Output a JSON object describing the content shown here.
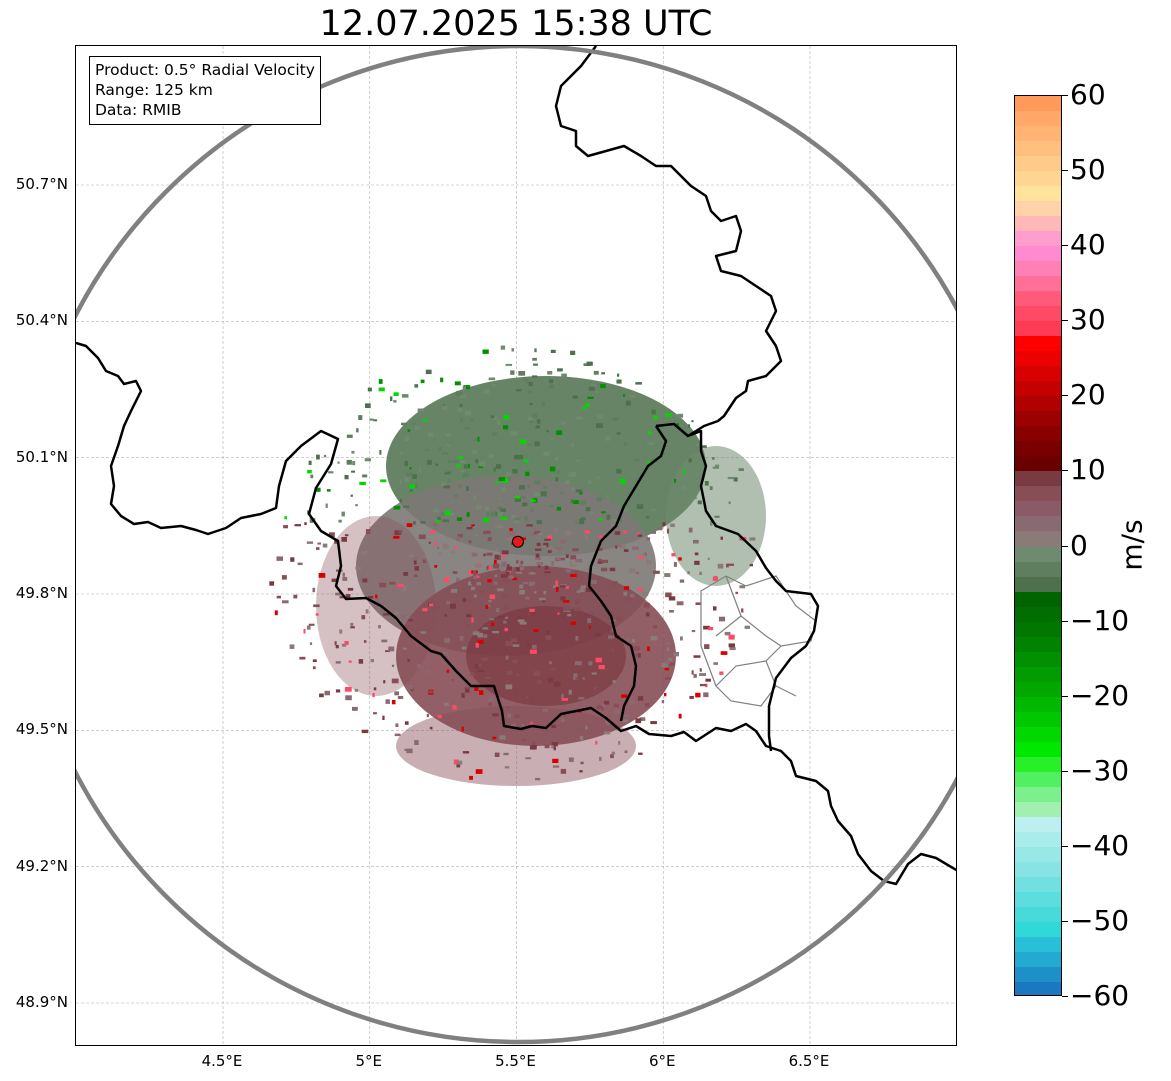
{
  "title": "12.07.2025 15:38 UTC",
  "info_box": {
    "lines": [
      "Product: 0.5° Radial Velocity",
      "Range: 125 km",
      "Data: RMIB"
    ]
  },
  "map": {
    "lat_ticks": [
      {
        "value": 50.7,
        "label": "50.7°N"
      },
      {
        "value": 50.4,
        "label": "50.4°N"
      },
      {
        "value": 50.1,
        "label": "50.1°N"
      },
      {
        "value": 49.8,
        "label": "49.8°N"
      },
      {
        "value": 49.5,
        "label": "49.5°N"
      },
      {
        "value": 49.2,
        "label": "49.2°N"
      },
      {
        "value": 48.9,
        "label": "48.9°N"
      }
    ],
    "lon_ticks": [
      {
        "value": 4.5,
        "label": "4.5°E"
      },
      {
        "value": 5.0,
        "label": "5°E"
      },
      {
        "value": 5.5,
        "label": "5.5°E"
      },
      {
        "value": 6.0,
        "label": "6°E"
      },
      {
        "value": 6.5,
        "label": "6.5°E"
      }
    ],
    "extent": {
      "lon_min": 4.0,
      "lon_max": 7.0,
      "lat_min": 48.8,
      "lat_max": 51.0
    },
    "radar_site": {
      "lon": 5.505,
      "lat": 49.915
    },
    "range_ring_km": 125,
    "grid": true,
    "colors": {
      "range_ring": "#808080",
      "borders": "#000000",
      "admin": "#808080",
      "radar_marker": "#e31a1c"
    }
  },
  "colorbar": {
    "unit": "m/s",
    "ticks": [
      {
        "value": 60,
        "label": "60"
      },
      {
        "value": 50,
        "label": "50"
      },
      {
        "value": 40,
        "label": "40"
      },
      {
        "value": 30,
        "label": "30"
      },
      {
        "value": 20,
        "label": "20"
      },
      {
        "value": 10,
        "label": "10"
      },
      {
        "value": 0,
        "label": "0"
      },
      {
        "value": -10,
        "label": "−10"
      },
      {
        "value": -20,
        "label": "−20"
      },
      {
        "value": -30,
        "label": "−30"
      },
      {
        "value": -40,
        "label": "−40"
      },
      {
        "value": -50,
        "label": "−50"
      },
      {
        "value": -60,
        "label": "−60"
      }
    ],
    "range": [
      -60,
      60
    ],
    "bands": [
      {
        "from": 58,
        "to": 60,
        "color": "#ff9a5a"
      },
      {
        "from": 56,
        "to": 58,
        "color": "#ffa868"
      },
      {
        "from": 54,
        "to": 56,
        "color": "#ffb474"
      },
      {
        "from": 52,
        "to": 54,
        "color": "#ffc07f"
      },
      {
        "from": 50,
        "to": 52,
        "color": "#ffcb8a"
      },
      {
        "from": 48,
        "to": 50,
        "color": "#ffd593"
      },
      {
        "from": 46,
        "to": 48,
        "color": "#ffe29c"
      },
      {
        "from": 44,
        "to": 46,
        "color": "#ffd2a8"
      },
      {
        "from": 42,
        "to": 44,
        "color": "#ffb8b8"
      },
      {
        "from": 40,
        "to": 42,
        "color": "#ff9dcf"
      },
      {
        "from": 38,
        "to": 40,
        "color": "#ff8ad0"
      },
      {
        "from": 36,
        "to": 38,
        "color": "#ff80b4"
      },
      {
        "from": 34,
        "to": 36,
        "color": "#ff6f98"
      },
      {
        "from": 32,
        "to": 34,
        "color": "#ff5a7a"
      },
      {
        "from": 30,
        "to": 32,
        "color": "#ff4a66"
      },
      {
        "from": 28,
        "to": 30,
        "color": "#ff3a55"
      },
      {
        "from": 26,
        "to": 28,
        "color": "#ff0000"
      },
      {
        "from": 24,
        "to": 26,
        "color": "#ec0000"
      },
      {
        "from": 22,
        "to": 24,
        "color": "#d80000"
      },
      {
        "from": 20,
        "to": 22,
        "color": "#c40000"
      },
      {
        "from": 18,
        "to": 20,
        "color": "#b00000"
      },
      {
        "from": 16,
        "to": 18,
        "color": "#9c0000"
      },
      {
        "from": 14,
        "to": 16,
        "color": "#880000"
      },
      {
        "from": 12,
        "to": 14,
        "color": "#780000"
      },
      {
        "from": 10,
        "to": 12,
        "color": "#6a0000"
      },
      {
        "from": 8,
        "to": 10,
        "color": "#7a3a42"
      },
      {
        "from": 6,
        "to": 8,
        "color": "#874e56"
      },
      {
        "from": 4,
        "to": 6,
        "color": "#8a5a66"
      },
      {
        "from": 2,
        "to": 4,
        "color": "#8a6a72"
      },
      {
        "from": 0,
        "to": 2,
        "color": "#8a7a78"
      },
      {
        "from": -2,
        "to": 0,
        "color": "#708a70"
      },
      {
        "from": -4,
        "to": -2,
        "color": "#5f7e5e"
      },
      {
        "from": -6,
        "to": -4,
        "color": "#4e704c"
      },
      {
        "from": -8,
        "to": -6,
        "color": "#006400"
      },
      {
        "from": -10,
        "to": -8,
        "color": "#006e00"
      },
      {
        "from": -12,
        "to": -10,
        "color": "#007800"
      },
      {
        "from": -14,
        "to": -12,
        "color": "#008400"
      },
      {
        "from": -16,
        "to": -14,
        "color": "#009000"
      },
      {
        "from": -18,
        "to": -16,
        "color": "#009c00"
      },
      {
        "from": -20,
        "to": -18,
        "color": "#00a800"
      },
      {
        "from": -22,
        "to": -20,
        "color": "#00b800"
      },
      {
        "from": -24,
        "to": -22,
        "color": "#00c800"
      },
      {
        "from": -26,
        "to": -24,
        "color": "#00d800"
      },
      {
        "from": -28,
        "to": -26,
        "color": "#00e800"
      },
      {
        "from": -30,
        "to": -28,
        "color": "#28f028"
      },
      {
        "from": -32,
        "to": -30,
        "color": "#50f060"
      },
      {
        "from": -34,
        "to": -32,
        "color": "#7cf08c"
      },
      {
        "from": -36,
        "to": -34,
        "color": "#a0f0b0"
      },
      {
        "from": -38,
        "to": -36,
        "color": "#bceff0"
      },
      {
        "from": -40,
        "to": -38,
        "color": "#a8ecec"
      },
      {
        "from": -42,
        "to": -40,
        "color": "#98e8e8"
      },
      {
        "from": -44,
        "to": -42,
        "color": "#88e4e4"
      },
      {
        "from": -46,
        "to": -44,
        "color": "#70e0e0"
      },
      {
        "from": -48,
        "to": -46,
        "color": "#5cdede"
      },
      {
        "from": -50,
        "to": -48,
        "color": "#48dada"
      },
      {
        "from": -52,
        "to": -50,
        "color": "#30d8d8"
      },
      {
        "from": -54,
        "to": -52,
        "color": "#28c0d8"
      },
      {
        "from": -56,
        "to": -54,
        "color": "#22aad0"
      },
      {
        "from": -58,
        "to": -56,
        "color": "#1e90c8"
      },
      {
        "from": -60,
        "to": -58,
        "color": "#1a78c0"
      }
    ]
  }
}
